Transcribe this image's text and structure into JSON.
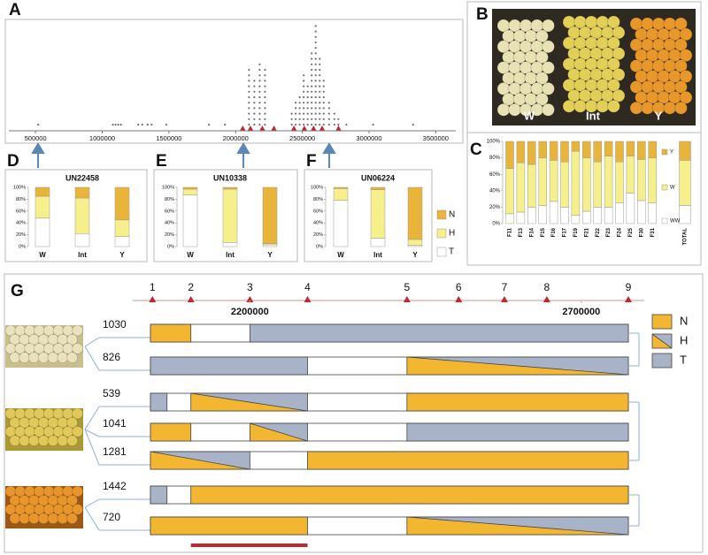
{
  "chart_data": [
    {
      "type": "dot",
      "label": "A",
      "x": [
        520000,
        1080000,
        1100000,
        1120000,
        1140000,
        1270000,
        1300000,
        1340000,
        1370000,
        1480000,
        1800000,
        1920000,
        2100000,
        2140000,
        2180000,
        2220000,
        2420000,
        2450000,
        2480000,
        2510000,
        2540000,
        2570000,
        2600000,
        2630000,
        2660000,
        2700000,
        2740000,
        2770000,
        2830000,
        3030000,
        3330000
      ],
      "values": [
        1,
        1,
        1,
        1,
        1,
        1,
        1,
        1,
        1,
        1,
        1,
        1,
        11,
        9,
        12,
        11,
        3,
        5,
        6,
        10,
        8,
        14,
        19,
        13,
        9,
        5,
        3,
        2,
        1,
        1,
        1
      ],
      "color": "#707070",
      "xlim": [
        300000,
        3650000
      ],
      "xticks": [
        500000,
        1000000,
        1500000,
        2000000,
        2500000,
        3000000,
        3500000
      ],
      "markers": [
        2053000,
        2111000,
        2200000,
        2287000,
        2437000,
        2515000,
        2584000,
        2648000,
        2771000
      ],
      "marker_color": "#c0282d"
    },
    {
      "type": "stacked_bar",
      "label": "C",
      "categories": [
        "F11",
        "F13",
        "F14",
        "F15",
        "F16",
        "F17",
        "F19",
        "F21",
        "F22",
        "F23",
        "F24",
        "F25",
        "F30",
        "F31",
        "TOTAL"
      ],
      "series": [
        {
          "name": "WW",
          "color": "#ffffff",
          "values": [
            12,
            14,
            20,
            22,
            27,
            20,
            10,
            15,
            20,
            20,
            25,
            37,
            28,
            25,
            22
          ]
        },
        {
          "name": "W",
          "color": "#f6f08c",
          "values": [
            55,
            60,
            52,
            58,
            50,
            55,
            78,
            65,
            55,
            62,
            50,
            45,
            50,
            55,
            55
          ]
        },
        {
          "name": "Y",
          "color": "#e9b43a",
          "values": [
            33,
            26,
            28,
            20,
            23,
            25,
            12,
            20,
            25,
            18,
            25,
            18,
            22,
            20,
            23
          ]
        }
      ],
      "ylim": [
        0,
        100
      ],
      "yticks": [
        {
          "value": 0,
          "label": "0%"
        },
        {
          "value": 20,
          "label": "20%"
        },
        {
          "value": 40,
          "label": "40%"
        },
        {
          "value": 60,
          "label": "60%"
        },
        {
          "value": 80,
          "label": "80%"
        },
        {
          "value": 100,
          "label": "100%"
        }
      ],
      "legend": true
    },
    {
      "type": "stacked_bar",
      "label": "D",
      "title": "UN22458",
      "categories": [
        "W",
        "Int",
        "Y"
      ],
      "series": [
        {
          "name": "T",
          "color": "#ffffff",
          "values": [
            48,
            22,
            17
          ]
        },
        {
          "name": "H",
          "color": "#f6f08c",
          "values": [
            37,
            60,
            28
          ]
        },
        {
          "name": "N",
          "color": "#e9b43a",
          "values": [
            15,
            18,
            55
          ]
        }
      ],
      "ylim": [
        0,
        100
      ],
      "yticks": [
        {
          "value": 0,
          "label": "0%"
        },
        {
          "value": 20,
          "label": "20%"
        },
        {
          "value": 40,
          "label": "40%"
        },
        {
          "value": 60,
          "label": "60%"
        },
        {
          "value": 80,
          "label": "80%"
        },
        {
          "value": 100,
          "label": "100%"
        }
      ],
      "legend": false
    },
    {
      "type": "stacked_bar",
      "label": "E",
      "title": "UN10338",
      "categories": [
        "W",
        "Int",
        "Y"
      ],
      "series": [
        {
          "name": "T",
          "color": "#ffffff",
          "values": [
            87,
            7,
            3
          ]
        },
        {
          "name": "H",
          "color": "#f6f08c",
          "values": [
            10,
            90,
            2
          ]
        },
        {
          "name": "N",
          "color": "#e9b43a",
          "values": [
            3,
            3,
            95
          ]
        }
      ],
      "ylim": [
        0,
        100
      ],
      "yticks": [
        {
          "value": 0,
          "label": "0%"
        },
        {
          "value": 20,
          "label": "20%"
        },
        {
          "value": 40,
          "label": "40%"
        },
        {
          "value": 60,
          "label": "60%"
        },
        {
          "value": 80,
          "label": "80%"
        },
        {
          "value": 100,
          "label": "100%"
        }
      ],
      "legend": false
    },
    {
      "type": "stacked_bar",
      "label": "F",
      "title": "UN06224",
      "categories": [
        "W",
        "Int",
        "Y"
      ],
      "series": [
        {
          "name": "T",
          "color": "#ffffff",
          "values": [
            78,
            14,
            2
          ]
        },
        {
          "name": "H",
          "color": "#f6f08c",
          "values": [
            20,
            82,
            10
          ]
        },
        {
          "name": "N",
          "color": "#e9b43a",
          "values": [
            2,
            4,
            88
          ]
        }
      ],
      "ylim": [
        0,
        100
      ],
      "yticks": [
        {
          "value": 0,
          "label": "0%"
        },
        {
          "value": 20,
          "label": "20%"
        },
        {
          "value": 40,
          "label": "40%"
        },
        {
          "value": 60,
          "label": "60%"
        },
        {
          "value": 80,
          "label": "80%"
        },
        {
          "value": 100,
          "label": "100%"
        }
      ],
      "legend": true
    }
  ],
  "photos": {
    "label": "B",
    "captions": [
      "W",
      "Int",
      "Y"
    ]
  },
  "diagram": {
    "label": "G",
    "xlim": [
      2050000,
      2771000
    ],
    "xticks": [
      2200000,
      2700000
    ],
    "markers": [
      {
        "label": "1",
        "position": 2053000
      },
      {
        "label": "2",
        "position": 2111000
      },
      {
        "label": "3",
        "position": 2200000
      },
      {
        "label": "4",
        "position": 2287000
      },
      {
        "label": "5",
        "position": 2437000
      },
      {
        "label": "6",
        "position": 2515000
      },
      {
        "label": "7",
        "position": 2584000
      },
      {
        "label": "8",
        "position": 2648000
      },
      {
        "label": "9",
        "position": 2771000
      }
    ],
    "legend": [
      {
        "name": "N",
        "color": "#f2b631"
      },
      {
        "name": "H"
      },
      {
        "name": "T",
        "color": "#a9b3c8"
      }
    ],
    "groups": [
      {
        "rows": [
          {
            "label": "1030",
            "segments": [
              {
                "type": "N",
                "start": 2050000,
                "end": 2111000
              },
              {
                "type": "T",
                "start": 2200000,
                "end": 2771000
              }
            ]
          },
          {
            "label": "826",
            "segments": [
              {
                "type": "T",
                "start": 2050000,
                "end": 2287000
              },
              {
                "type": "H",
                "start": 2437000,
                "end": 2771000
              }
            ]
          }
        ]
      },
      {
        "rows": [
          {
            "label": "539",
            "segments": [
              {
                "type": "T",
                "start": 2050000,
                "end": 2075000
              },
              {
                "type": "H",
                "start": 2111000,
                "end": 2287000
              },
              {
                "type": "N",
                "start": 2437000,
                "end": 2771000
              }
            ]
          },
          {
            "label": "1041",
            "segments": [
              {
                "type": "N",
                "start": 2050000,
                "end": 2111000
              },
              {
                "type": "H",
                "start": 2200000,
                "end": 2287000
              },
              {
                "type": "T",
                "start": 2437000,
                "end": 2771000
              }
            ]
          },
          {
            "label": "1281",
            "segments": [
              {
                "type": "H",
                "start": 2050000,
                "end": 2200000
              },
              {
                "type": "N",
                "start": 2287000,
                "end": 2771000
              }
            ]
          }
        ]
      },
      {
        "rows": [
          {
            "label": "1442",
            "segments": [
              {
                "type": "T",
                "start": 2050000,
                "end": 2075000
              },
              {
                "type": "N",
                "start": 2111000,
                "end": 2771000
              }
            ]
          },
          {
            "label": "720",
            "segments": [
              {
                "type": "N",
                "start": 2050000,
                "end": 2287000
              },
              {
                "type": "H",
                "start": 2437000,
                "end": 2771000
              }
            ]
          }
        ]
      }
    ],
    "highlight_region": [
      2111000,
      2287000
    ],
    "highlight_color": "#c0282d"
  }
}
